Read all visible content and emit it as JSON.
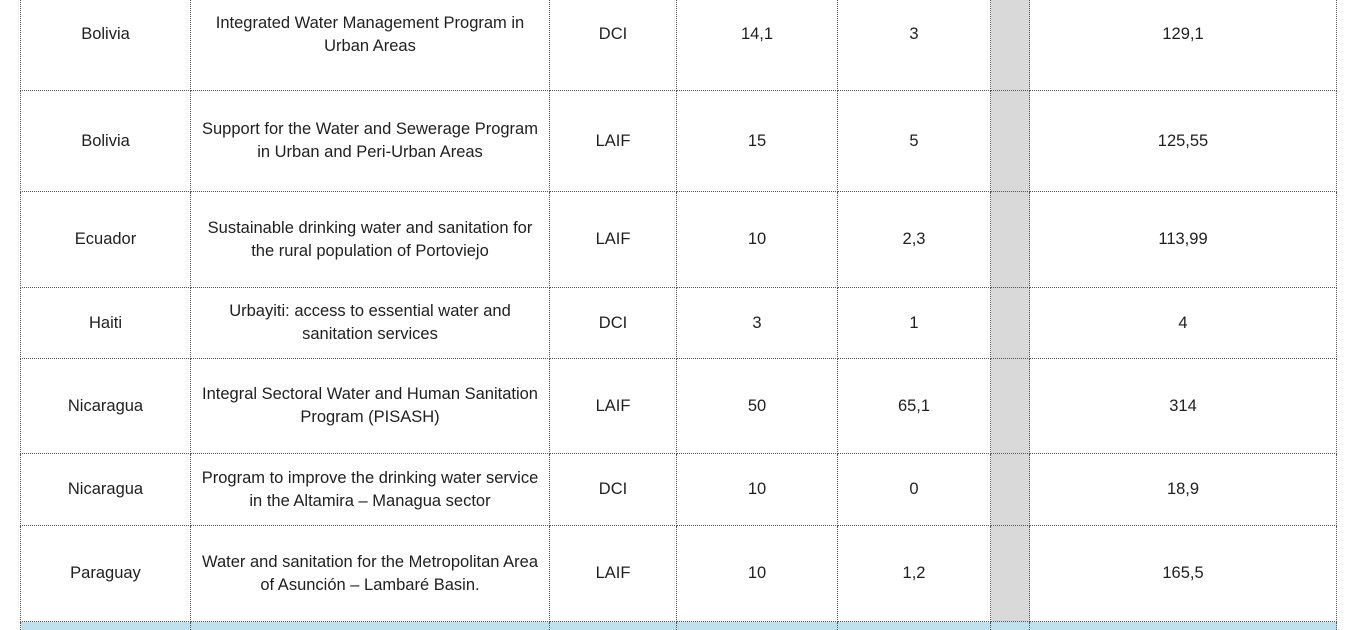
{
  "rows": [
    {
      "country": "Bolivia",
      "project": "Integrated Water Management Program in Urban Areas",
      "instrument": "DCI",
      "c1": "14,1",
      "c2": "3",
      "total": "129,1"
    },
    {
      "country": "Bolivia",
      "project": "Support for the Water and Sewerage Program in Urban and Peri-Urban Areas",
      "instrument": "LAIF",
      "c1": "15",
      "c2": "5",
      "total": "125,55"
    },
    {
      "country": "Ecuador",
      "project": "Sustainable drinking water and sanitation for the rural population of Portoviejo",
      "instrument": "LAIF",
      "c1": "10",
      "c2": "2,3",
      "total": "113,99"
    },
    {
      "country": "Haiti",
      "project": "Urbayiti: access to essential water and sanitation services",
      "instrument": "DCI",
      "c1": "3",
      "c2": "1",
      "total": "4"
    },
    {
      "country": "Nicaragua",
      "project": "Integral Sectoral Water and Human Sanitation Program (PISASH)",
      "instrument": "LAIF",
      "c1": "50",
      "c2": "65,1",
      "total": "314"
    },
    {
      "country": "Nicaragua",
      "project": "Program to improve the drinking water service in the Altamira – Managua sector",
      "instrument": "DCI",
      "c1": "10",
      "c2": "0",
      "total": "18,9"
    },
    {
      "country": "Paraguay",
      "project": "Water and sanitation for the Metropolitan Area of Asunción – Lambaré Basin.",
      "instrument": "LAIF",
      "c1": "10",
      "c2": "1,2",
      "total": "165,5"
    }
  ],
  "colors": {
    "gap_column": "#d9d9d9",
    "footer_row": "#bfe1ee"
  }
}
